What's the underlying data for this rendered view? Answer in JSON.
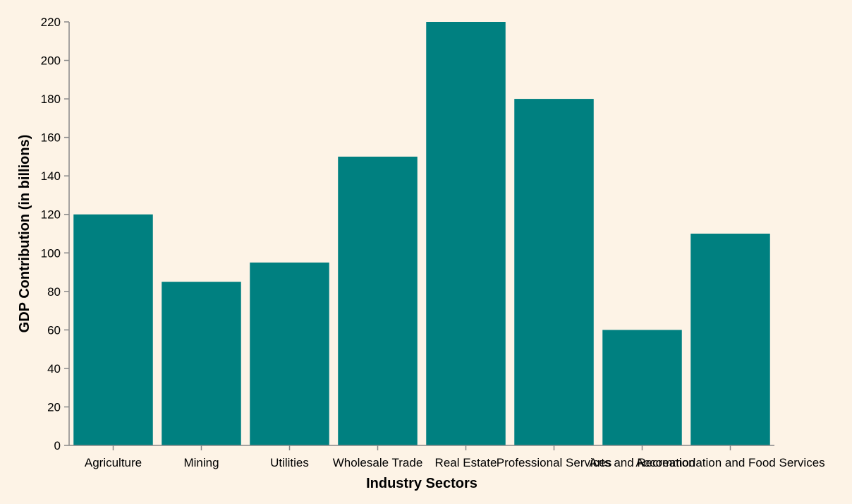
{
  "chart_data": {
    "type": "bar",
    "title": "",
    "xlabel": "Industry Sectors",
    "ylabel": "GDP Contribution (in billions)",
    "categories": [
      "Agriculture",
      "Mining",
      "Utilities",
      "Wholesale Trade",
      "Real Estate",
      "Professional Services",
      "Arts and Recreation",
      "Accommodation and Food Services"
    ],
    "values": [
      120,
      85,
      95,
      150,
      220,
      180,
      60,
      110
    ],
    "ylim": [
      0,
      220
    ],
    "yticks": [
      0,
      20,
      40,
      60,
      80,
      100,
      120,
      140,
      160,
      180,
      200,
      220
    ],
    "grid": false,
    "bar_color": "#008080",
    "background": "#fdf3e6"
  }
}
